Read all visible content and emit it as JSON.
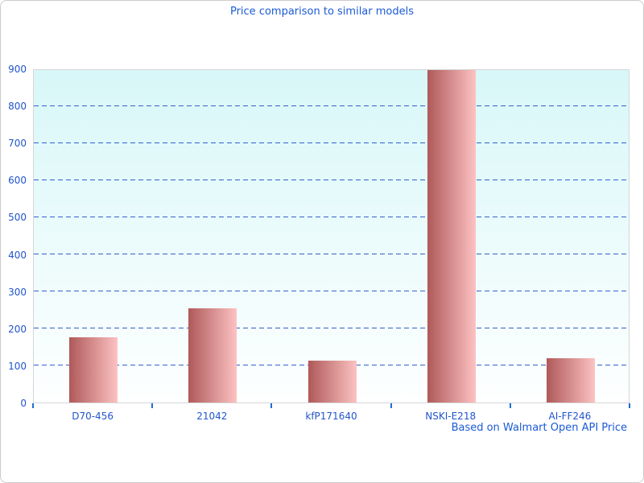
{
  "title": "Price comparison to similar models",
  "footer": "Based on Walmart Open API Price",
  "colors": {
    "window_bg": "#ffffff",
    "window_border": "#cccccc",
    "title": "#1a5ad6",
    "axis_label": "#2255cc",
    "gridline": "#2e62cc",
    "tick": "#1d6fd6",
    "plot_border": "#d6d6d6",
    "plot_bg_top": "#d8f7f8",
    "plot_bg_bottom": "#feffff",
    "bar_gradient_left": "#b05959",
    "bar_gradient_right": "#fcc2c2"
  },
  "chart_data": {
    "type": "bar",
    "title": "Price comparison to similar models",
    "categories": [
      "D70-456",
      "21042",
      "kfP171640",
      "NSKI-E218",
      "AI-FF246"
    ],
    "values": [
      176,
      254,
      112,
      896,
      119
    ],
    "xlabel": "",
    "ylabel": "",
    "ylim": [
      0,
      900
    ],
    "yticks": [
      0,
      100,
      200,
      300,
      400,
      500,
      600,
      700,
      800,
      900
    ],
    "grid": "horizontal-dashed",
    "legend": "none",
    "annotation": "Based on Walmart Open API Price"
  }
}
